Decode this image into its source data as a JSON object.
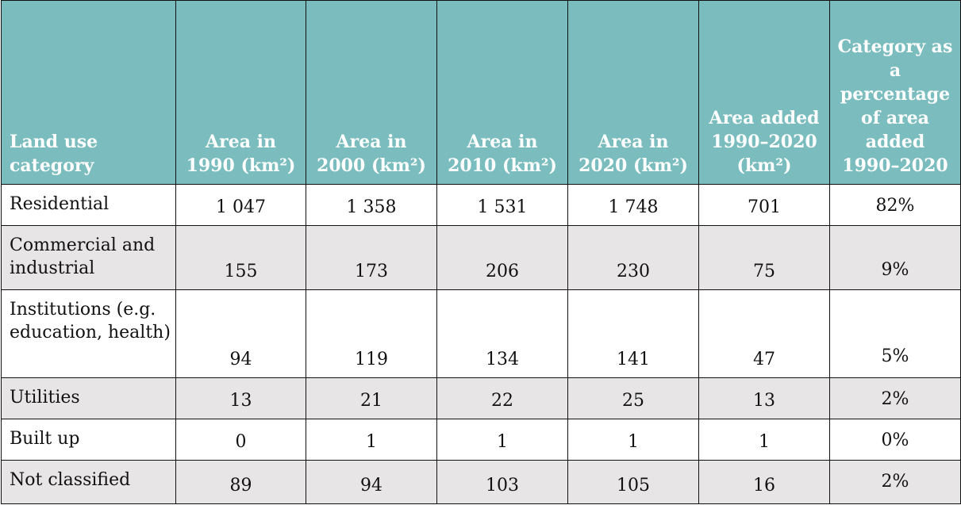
{
  "table": {
    "headers": [
      "Land use category",
      "Area in 1990 (km²)",
      "Area in 2000 (km²)",
      "Area in 2010 (km²)",
      "Area in 2020 (km²)",
      "Area added 1990–2020 (km²)",
      "Category as a percentage of area added 1990–2020"
    ],
    "rows": [
      [
        "Residential",
        "1 047",
        "1 358",
        "1 531",
        "1 748",
        "701",
        "82%"
      ],
      [
        "Commercial and industrial",
        "155",
        "173",
        "206",
        "230",
        "75",
        "9%"
      ],
      [
        "Institutions (e.g. education, health)",
        "94",
        "119",
        "134",
        "141",
        "47",
        "5%"
      ],
      [
        "Utilities",
        "13",
        "21",
        "22",
        "25",
        "13",
        "2%"
      ],
      [
        "Built up",
        "0",
        "1",
        "1",
        "1",
        "1",
        "0%"
      ],
      [
        "Not classified",
        "89",
        "94",
        "103",
        "105",
        "16",
        "2%"
      ]
    ],
    "colors": {
      "header_bg": "#7bbdbe",
      "header_text": "#ffffff",
      "alt_row_bg": "#e7e5e6",
      "border": "#111111"
    }
  }
}
